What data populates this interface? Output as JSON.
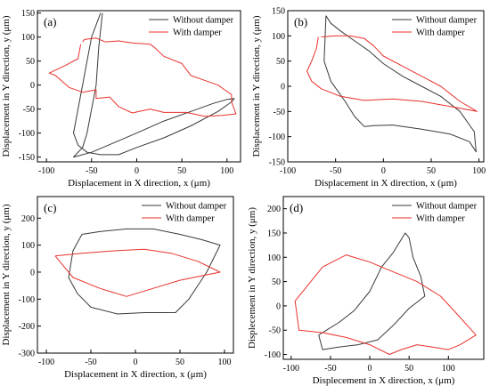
{
  "chart_data": [
    {
      "type": "line",
      "panel_label": "(a)",
      "xlabel": "Displacement in X direction, x (μm)",
      "ylabel": "Displacement in Y direction, y (μm)",
      "xlim": [
        -110,
        115
      ],
      "ylim": [
        -160,
        155
      ],
      "xticks": [
        -100,
        -50,
        0,
        50,
        100
      ],
      "yticks": [
        -150,
        -100,
        -50,
        0,
        50,
        100,
        150
      ],
      "legend_position": "top-right",
      "series": [
        {
          "name": "Without damper",
          "color": "#3a3a3a",
          "x": [
            -40,
            -50,
            -55,
            -60,
            -65,
            -70,
            -65,
            -55,
            -40,
            -20,
            0,
            30,
            60,
            90,
            105,
            108,
            100,
            85,
            60,
            30,
            0,
            -25,
            -50,
            -70,
            -60,
            -55,
            -50,
            -45,
            -42,
            -38
          ],
          "y": [
            150,
            100,
            50,
            0,
            -50,
            -100,
            -125,
            -140,
            -145,
            -145,
            -130,
            -110,
            -85,
            -55,
            -35,
            -28,
            -30,
            -38,
            -55,
            -75,
            -100,
            -120,
            -140,
            -150,
            -130,
            -100,
            -50,
            0,
            80,
            150
          ]
        },
        {
          "name": "With damper",
          "color": "#e8322c",
          "x": [
            -60,
            -58,
            -45,
            -35,
            -20,
            -5,
            15,
            20,
            30,
            50,
            60,
            75,
            90,
            105,
            105,
            110,
            95,
            75,
            55,
            30,
            15,
            -5,
            -20,
            -30,
            -45,
            -45,
            -60,
            -75,
            -90,
            -97,
            -80,
            -65,
            -62
          ],
          "y": [
            90,
            95,
            98,
            90,
            92,
            88,
            85,
            78,
            60,
            45,
            20,
            10,
            0,
            -20,
            -35,
            -60,
            -63,
            -65,
            -57,
            -57,
            -50,
            -58,
            -45,
            -25,
            -28,
            -10,
            -15,
            -5,
            20,
            25,
            40,
            55,
            85
          ]
        }
      ]
    },
    {
      "type": "line",
      "panel_label": "(b)",
      "xlabel": "Displacement in X direction, x (μm)",
      "ylabel": "Displacement in Y direction, y (μm)",
      "xlim": [
        -100,
        105
      ],
      "ylim": [
        -150,
        150
      ],
      "xticks": [
        -100,
        -50,
        0,
        50,
        100
      ],
      "yticks": [
        -150,
        -100,
        -50,
        0,
        50,
        100,
        150
      ],
      "legend_position": "top-right",
      "series": [
        {
          "name": "Without damper",
          "color": "#3a3a3a",
          "x": [
            -60,
            -55,
            -45,
            -30,
            -15,
            0,
            20,
            40,
            60,
            80,
            95,
            97,
            90,
            70,
            40,
            10,
            -10,
            -20,
            -30,
            -40,
            -55,
            -62,
            -60
          ],
          "y": [
            140,
            125,
            110,
            90,
            70,
            45,
            20,
            0,
            -20,
            -50,
            -90,
            -130,
            -110,
            -95,
            -85,
            -77,
            -78,
            -80,
            -60,
            -30,
            10,
            50,
            140
          ]
        },
        {
          "name": "With damper",
          "color": "#e8322c",
          "x": [
            -65,
            -50,
            -35,
            -20,
            -10,
            0,
            20,
            40,
            60,
            80,
            98,
            70,
            40,
            10,
            -20,
            -45,
            -65,
            -75,
            -80,
            -75,
            -70,
            -68
          ],
          "y": [
            98,
            100,
            100,
            95,
            80,
            60,
            40,
            20,
            0,
            -30,
            -50,
            -40,
            -30,
            -25,
            -28,
            -20,
            -5,
            10,
            30,
            50,
            75,
            98
          ]
        }
      ]
    },
    {
      "type": "line",
      "panel_label": "(c)",
      "xlabel": "Displacement in X direction, x (μm)",
      "ylabel": "Displacement in Y direction, y (μm)",
      "xlim": [
        -110,
        110
      ],
      "ylim": [
        -300,
        280
      ],
      "xticks": [
        -100,
        -50,
        0,
        50,
        100
      ],
      "yticks": [
        -300,
        -200,
        -100,
        0,
        100,
        200
      ],
      "legend_position": "top-right",
      "series": [
        {
          "name": "Without damper",
          "color": "#3a3a3a",
          "x": [
            -60,
            -40,
            -10,
            20,
            50,
            75,
            95,
            80,
            70,
            60,
            45,
            10,
            -20,
            -50,
            -65,
            -75,
            -70,
            -60
          ],
          "y": [
            140,
            150,
            160,
            160,
            140,
            120,
            100,
            0,
            -50,
            -100,
            -150,
            -150,
            -155,
            -130,
            -80,
            -20,
            80,
            140
          ]
        },
        {
          "name": "With damper",
          "color": "#e8322c",
          "x": [
            -90,
            -60,
            -20,
            10,
            40,
            70,
            95,
            80,
            50,
            20,
            -10,
            -40,
            -70,
            -80,
            -90
          ],
          "y": [
            60,
            70,
            80,
            85,
            70,
            40,
            0,
            -10,
            -30,
            -60,
            -90,
            -60,
            -20,
            20,
            60
          ]
        }
      ]
    },
    {
      "type": "line",
      "panel_label": "(d)",
      "xlabel": "Displecement in X direction, x (μm)",
      "ylabel": "Displecement in Y direction, y (μm)",
      "xlim": [
        -110,
        145
      ],
      "ylim": [
        -110,
        225
      ],
      "xticks": [
        -100,
        -50,
        0,
        50,
        100
      ],
      "yticks": [
        -100,
        -50,
        0,
        50,
        100,
        150,
        200
      ],
      "legend_position": "top-right",
      "series": [
        {
          "name": "Without damper",
          "color": "#3a3a3a",
          "x": [
            -65,
            -55,
            -40,
            -20,
            0,
            15,
            30,
            45,
            50,
            55,
            65,
            70,
            50,
            30,
            10,
            -15,
            -40,
            -60,
            -65
          ],
          "y": [
            -60,
            -50,
            -35,
            -10,
            30,
            80,
            110,
            150,
            140,
            100,
            60,
            20,
            -5,
            -40,
            -70,
            -80,
            -85,
            -90,
            -60
          ]
        },
        {
          "name": "With damper",
          "color": "#e8322c",
          "x": [
            -60,
            -30,
            0,
            30,
            60,
            90,
            110,
            135,
            115,
            100,
            80,
            60,
            40,
            25,
            0,
            -30,
            -60,
            -90,
            -95,
            -75,
            -60
          ],
          "y": [
            80,
            105,
            90,
            70,
            50,
            20,
            -15,
            -60,
            -80,
            -90,
            -85,
            -80,
            -90,
            -100,
            -80,
            -65,
            -55,
            -50,
            10,
            50,
            80
          ]
        }
      ]
    }
  ]
}
